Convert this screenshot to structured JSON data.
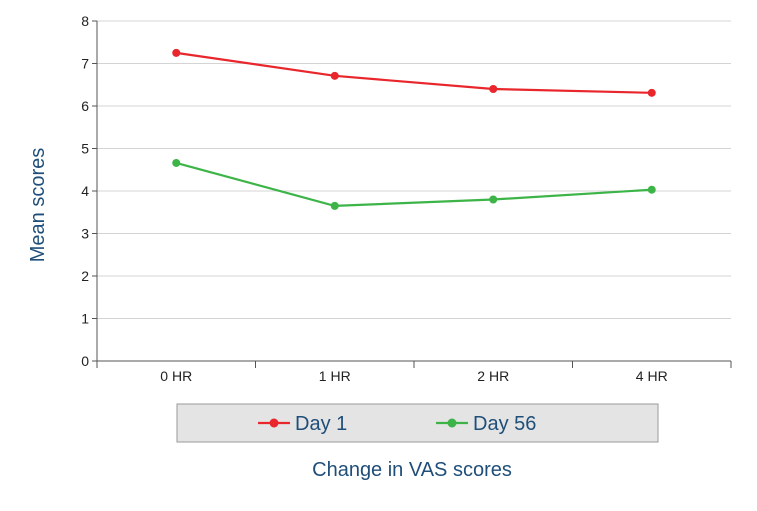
{
  "chart_data": {
    "type": "line",
    "categories": [
      "0 HR",
      "1 HR",
      "2 HR",
      "4 HR"
    ],
    "series": [
      {
        "name": "Day 1",
        "color": "#e8262b",
        "values": [
          7.25,
          6.71,
          6.4,
          6.31
        ]
      },
      {
        "name": "Day 56",
        "color": "#3cb447",
        "values": [
          4.66,
          3.65,
          3.8,
          4.03
        ]
      }
    ],
    "yticks": [
      "0",
      "1",
      "2",
      "3",
      "4",
      "5",
      "6",
      "7",
      "8"
    ],
    "ylim": [
      0,
      8
    ],
    "ylabel": "Mean scores",
    "xlabel": "Change in VAS scores",
    "grid": true,
    "legend_position": "bottom"
  }
}
